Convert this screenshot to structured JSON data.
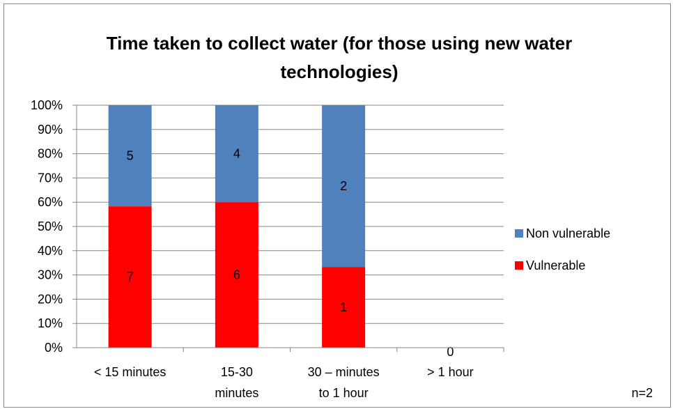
{
  "chart_data": {
    "type": "stacked_bar",
    "title": "Time taken to collect water (for those using new water technologies)",
    "categories": [
      [
        "< 15 minutes"
      ],
      [
        "15-30",
        "minutes"
      ],
      [
        "30 – minutes",
        "to 1 hour"
      ],
      [
        "> 1 hour"
      ]
    ],
    "series": [
      {
        "name": "Vulnerable",
        "color": "#ff0000",
        "values": [
          58.3,
          60,
          33.3,
          0
        ],
        "counts": [
          7,
          6,
          1,
          0
        ]
      },
      {
        "name": "Non vulnerable",
        "color": "#4f81bd",
        "values": [
          41.7,
          40,
          66.7,
          0
        ],
        "counts": [
          5,
          4,
          2,
          null
        ]
      }
    ],
    "ylim": [
      0,
      100
    ],
    "yticks": [
      {
        "value": 0,
        "label": "0%"
      },
      {
        "value": 10,
        "label": "10%"
      },
      {
        "value": 20,
        "label": "20%"
      },
      {
        "value": 30,
        "label": "30%"
      },
      {
        "value": 40,
        "label": "40%"
      },
      {
        "value": 50,
        "label": "50%"
      },
      {
        "value": 60,
        "label": "60%"
      },
      {
        "value": 70,
        "label": "70%"
      },
      {
        "value": 80,
        "label": "80%"
      },
      {
        "value": 90,
        "label": "90%"
      },
      {
        "value": 100,
        "label": "100%"
      }
    ],
    "grid": true,
    "legend": "right",
    "note": "n=2"
  }
}
